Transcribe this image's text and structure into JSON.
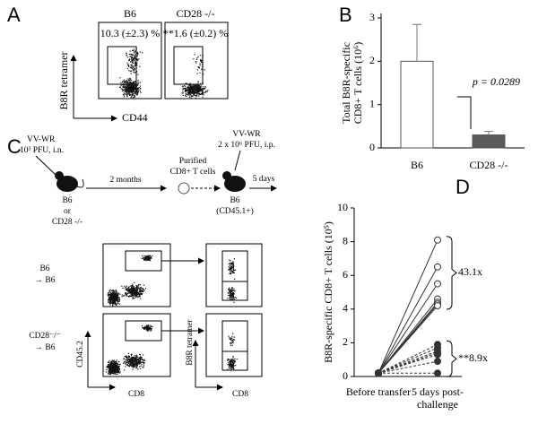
{
  "panel_a": {
    "label": "A",
    "columns": [
      "B6",
      "CD28 -/-"
    ],
    "percentages": [
      "10.3 (±2.3) %",
      "**1.6 (±0.2) %"
    ],
    "y_axis": "B8R tetramer",
    "x_axis": "CD44"
  },
  "panel_c": {
    "label": "C",
    "infection": {
      "virus": "VV-WR",
      "dose": "10³ PFU, i.n."
    },
    "donors": [
      "B6",
      "or",
      "CD28 -/-"
    ],
    "interval": "2 months",
    "purified": [
      "Purified",
      "CD8+ T cells"
    ],
    "challenge": {
      "virus": "VV-WR",
      "dose": "2 x 10⁶ PFU, i.p."
    },
    "wait": "5 days",
    "recipient": [
      "B6",
      "(CD45.1+)"
    ],
    "rows": [
      [
        "B6",
        "→ B6"
      ],
      [
        "CD28⁻/⁻",
        "→ B6"
      ]
    ],
    "left_axes": {
      "y": "CD45.2",
      "x": "CD8"
    },
    "right_axes": {
      "y": "B8R tetramer",
      "x": "CD8"
    }
  },
  "chart_data": [
    {
      "type": "bar",
      "panel_label": "B",
      "y_label": [
        "Total B8R-specific",
        "CD8+ T cells (10⁶)"
      ],
      "categories": [
        "B6",
        "CD28 -/-"
      ],
      "values": [
        2.0,
        0.3
      ],
      "errors": [
        0.85,
        0.08
      ],
      "colors": [
        "#ffffff",
        "#5a5a5a"
      ],
      "ylim": [
        0,
        3
      ],
      "yticks": [
        0,
        1,
        2,
        3
      ],
      "annotation": "p = 0.0289"
    },
    {
      "type": "line",
      "panel_label": "D",
      "y_label": "B8R-specific CD8+ T cells (10⁵)",
      "categories": [
        "Before transfer",
        "5 days post-challenge"
      ],
      "ylim": [
        0,
        10
      ],
      "yticks": [
        0,
        2,
        4,
        6,
        8,
        10
      ],
      "annotations": [
        "43.1x",
        "**8.9x"
      ],
      "series": [
        {
          "color": "#333333",
          "style": "solid",
          "marker": "open",
          "values": [
            0.2,
            8.1
          ]
        },
        {
          "color": "#333333",
          "style": "solid",
          "marker": "open",
          "values": [
            0.2,
            6.5
          ]
        },
        {
          "color": "#333333",
          "style": "solid",
          "marker": "open",
          "values": [
            0.2,
            5.5
          ]
        },
        {
          "color": "#333333",
          "style": "solid",
          "marker": "open",
          "values": [
            0.2,
            4.6
          ]
        },
        {
          "color": "#333333",
          "style": "solid",
          "marker": "open",
          "values": [
            0.2,
            4.4
          ]
        },
        {
          "color": "#333333",
          "style": "solid",
          "marker": "open",
          "values": [
            0.2,
            4.3
          ]
        },
        {
          "color": "#333333",
          "style": "solid",
          "marker": "open",
          "values": [
            0.2,
            4.2
          ]
        },
        {
          "color": "#333333",
          "style": "dashed",
          "marker": "filled",
          "values": [
            0.2,
            1.9
          ]
        },
        {
          "color": "#333333",
          "style": "dashed",
          "marker": "filled",
          "values": [
            0.2,
            1.7
          ]
        },
        {
          "color": "#333333",
          "style": "dashed",
          "marker": "filled",
          "values": [
            0.2,
            1.5
          ]
        },
        {
          "color": "#333333",
          "style": "dashed",
          "marker": "filled",
          "values": [
            0.2,
            1.4
          ]
        },
        {
          "color": "#333333",
          "style": "dashed",
          "marker": "filled",
          "values": [
            0.2,
            1.3
          ]
        },
        {
          "color": "#333333",
          "style": "dashed",
          "marker": "filled",
          "values": [
            0.2,
            0.9
          ]
        },
        {
          "color": "#333333",
          "style": "dashed",
          "marker": "filled",
          "values": [
            0.2,
            0.2
          ]
        }
      ]
    }
  ]
}
